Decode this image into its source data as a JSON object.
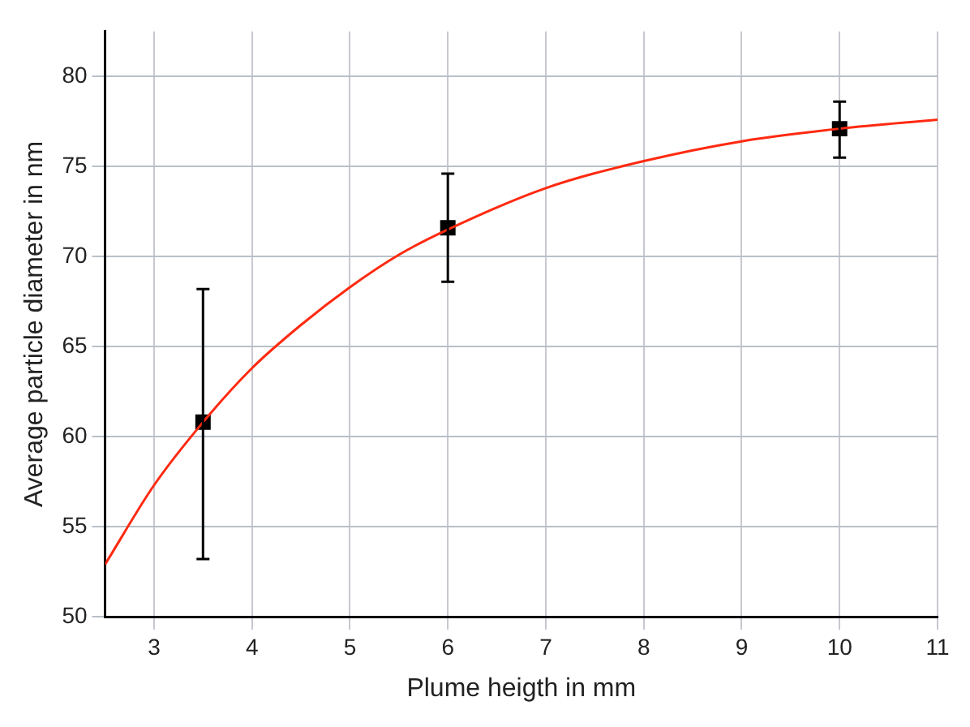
{
  "chart_data": {
    "type": "scatter",
    "xlabel": "Plume heigth in mm",
    "ylabel": "Average particle diameter in nm",
    "xlim": [
      2.5,
      11
    ],
    "xticks": [
      3,
      4,
      5,
      6,
      7,
      8,
      9,
      10,
      11
    ],
    "ylim": [
      50,
      82.5
    ],
    "yticks": [
      50,
      55,
      60,
      65,
      70,
      75,
      80
    ],
    "grid": true,
    "legend": false,
    "series": [
      {
        "color": "#000000",
        "marker": "square",
        "x": [
          3.5,
          6,
          10
        ],
        "values": [
          60.8,
          71.6,
          77.1
        ],
        "errors": [
          [
            53.2,
            68.2
          ],
          [
            68.6,
            74.6
          ],
          [
            75.5,
            78.6
          ]
        ]
      },
      {
        "type": "line",
        "color": "#ff2a10",
        "marker": "none",
        "x": [
          2.5,
          3,
          3.5,
          4,
          4.5,
          5,
          5.5,
          6,
          7,
          8,
          9,
          10,
          11
        ],
        "values": [
          52.9,
          57.3,
          60.8,
          63.8,
          66.2,
          68.3,
          70.1,
          71.5,
          73.8,
          75.3,
          76.4,
          77.1,
          77.6
        ]
      }
    ]
  }
}
